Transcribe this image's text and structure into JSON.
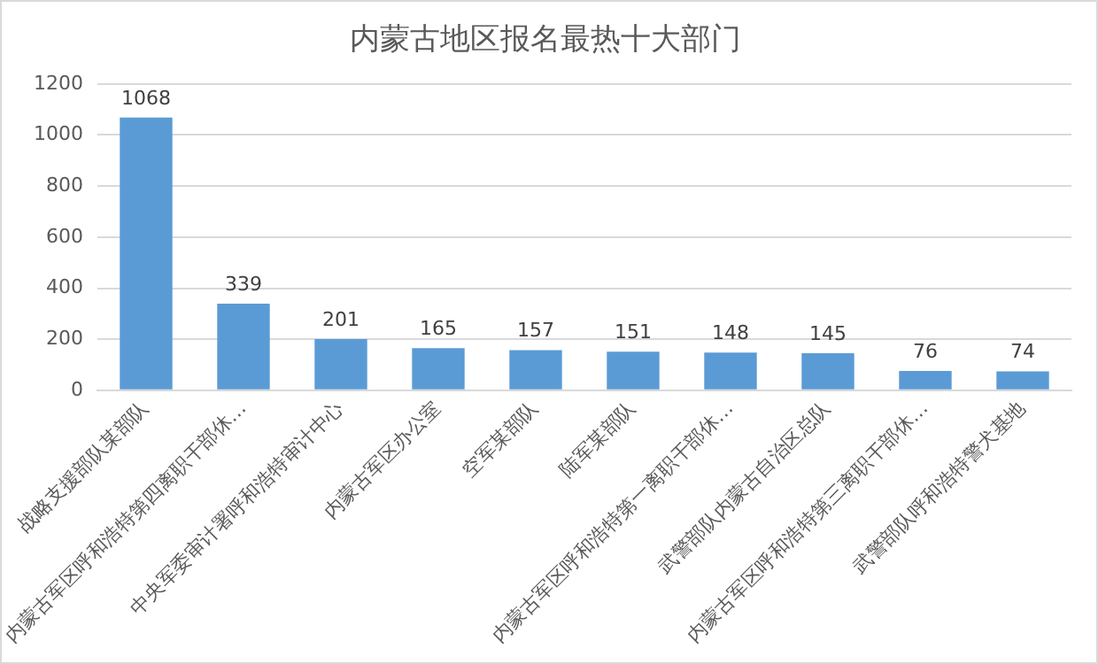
{
  "chart_data": {
    "type": "bar",
    "title": "内蒙古地区报名最热十大部门",
    "categories": [
      "战略支援部队某部队",
      "内蒙古军区呼和浩特第四离职干部休…",
      "中央军委审计署呼和浩特审计中心",
      "内蒙古军区办公室",
      "空军某部队",
      "陆军某部队",
      "内蒙古军区呼和浩特第一离职干部休…",
      "武警部队内蒙古自治区总队",
      "内蒙古军区呼和浩特第三离职干部休…",
      "武警部队呼和浩特警犬基地"
    ],
    "values": [
      1068,
      339,
      201,
      165,
      157,
      151,
      148,
      145,
      76,
      74
    ],
    "color": "#5b9bd5",
    "ylim": [
      0,
      1200
    ],
    "yticks": [
      0,
      200,
      400,
      600,
      800,
      1000,
      1200
    ],
    "grid": "y",
    "data_labels": true
  }
}
